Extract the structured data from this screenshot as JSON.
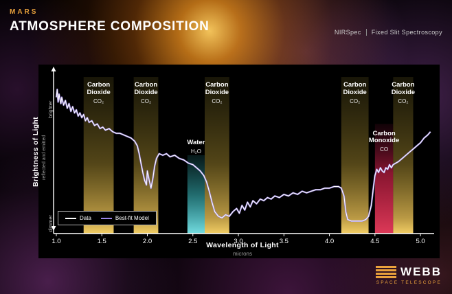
{
  "header": {
    "kicker": "MARS",
    "title": "ATMOSPHERE COMPOSITION",
    "instrument": "NIRSpec",
    "mode": "Fixed Slit Spectroscopy"
  },
  "footer": {
    "logo_name": "WEBB",
    "logo_sub": "SPACE TELESCOPE"
  },
  "colors": {
    "accent_orange": "#e9a13c",
    "model_purple": "#9b85e8",
    "data_white": "#ffffff",
    "band_yellow": "#e8c150",
    "band_teal": "#4fd8dc",
    "band_red": "#d62246"
  },
  "chart_data": {
    "type": "line",
    "title": "Mars Atmosphere Composition",
    "xlabel": "Wavelength of Light",
    "xlabel_sub": "microns",
    "ylabel": "Brightness of Light",
    "ylabel_sub": "reflected and emitted",
    "y_axis_top": "brighter",
    "y_axis_bottom": "dimmer",
    "xlim": [
      0.97,
      5.12
    ],
    "ylim": [
      0,
      100
    ],
    "x_ticks": [
      "1.0",
      "1.5",
      "2.0",
      "2.5",
      "3.0",
      "3.5",
      "4.0",
      "4.5",
      "5.0"
    ],
    "grid": false,
    "legend_position": "bottom-left",
    "legend": [
      {
        "label": "Data",
        "color": "#ffffff"
      },
      {
        "label": "Best-fit Model",
        "color": "#9b85e8"
      }
    ],
    "bands": [
      {
        "name": "Carbon Dioxide",
        "formula": "CO₂",
        "x0": 1.3,
        "x1": 1.63,
        "color": "yellow",
        "band_top": 0.0,
        "label_top": 0.03
      },
      {
        "name": "Carbon Dioxide",
        "formula": "CO₂",
        "x0": 1.85,
        "x1": 2.12,
        "color": "yellow",
        "band_top": 0.0,
        "label_top": 0.03
      },
      {
        "name": "Water",
        "formula": "H₂O",
        "x0": 2.44,
        "x1": 2.63,
        "color": "teal",
        "band_top": 0.5,
        "label_top": 0.4
      },
      {
        "name": "Carbon Dioxide",
        "formula": "CO₂",
        "x0": 2.63,
        "x1": 2.9,
        "color": "yellow",
        "band_top": 0.0,
        "label_top": 0.03
      },
      {
        "name": "Carbon Dioxide",
        "formula": "CO₂",
        "x0": 4.13,
        "x1": 4.43,
        "color": "yellow",
        "band_top": 0.0,
        "label_top": 0.03
      },
      {
        "name": "Carbon Monoxide",
        "formula": "CO",
        "x0": 4.5,
        "x1": 4.7,
        "color": "red",
        "band_top": 0.3,
        "label_top": 0.34
      },
      {
        "name": "Carbon Dioxide",
        "formula": "CO₂",
        "x0": 4.7,
        "x1": 4.92,
        "color": "yellow",
        "band_top": 0.0,
        "label_top": 0.03
      }
    ],
    "series": [
      {
        "name": "spectrum",
        "points": [
          [
            1.0,
            87
          ],
          [
            1.01,
            92
          ],
          [
            1.02,
            84
          ],
          [
            1.03,
            89
          ],
          [
            1.05,
            83
          ],
          [
            1.06,
            87
          ],
          [
            1.08,
            82
          ],
          [
            1.1,
            85
          ],
          [
            1.12,
            80
          ],
          [
            1.14,
            83
          ],
          [
            1.16,
            78
          ],
          [
            1.18,
            81
          ],
          [
            1.2,
            77
          ],
          [
            1.22,
            79
          ],
          [
            1.24,
            75
          ],
          [
            1.26,
            77
          ],
          [
            1.28,
            74
          ],
          [
            1.3,
            76
          ],
          [
            1.32,
            72
          ],
          [
            1.34,
            74
          ],
          [
            1.36,
            71
          ],
          [
            1.39,
            72
          ],
          [
            1.42,
            69
          ],
          [
            1.45,
            70
          ],
          [
            1.48,
            67
          ],
          [
            1.51,
            68
          ],
          [
            1.54,
            66
          ],
          [
            1.58,
            67
          ],
          [
            1.62,
            65
          ],
          [
            1.66,
            64
          ],
          [
            1.7,
            64
          ],
          [
            1.74,
            63
          ],
          [
            1.78,
            62
          ],
          [
            1.82,
            61
          ],
          [
            1.86,
            59
          ],
          [
            1.89,
            56
          ],
          [
            1.91,
            51
          ],
          [
            1.93,
            45
          ],
          [
            1.95,
            39
          ],
          [
            1.97,
            34
          ],
          [
            1.99,
            31
          ],
          [
            2.0,
            40
          ],
          [
            2.02,
            34
          ],
          [
            2.04,
            29
          ],
          [
            2.06,
            35
          ],
          [
            2.08,
            43
          ],
          [
            2.1,
            48
          ],
          [
            2.13,
            51
          ],
          [
            2.17,
            50
          ],
          [
            2.21,
            51
          ],
          [
            2.25,
            49
          ],
          [
            2.3,
            50
          ],
          [
            2.35,
            48
          ],
          [
            2.4,
            47
          ],
          [
            2.45,
            45
          ],
          [
            2.5,
            44
          ],
          [
            2.54,
            42
          ],
          [
            2.58,
            40
          ],
          [
            2.62,
            37
          ],
          [
            2.65,
            33
          ],
          [
            2.68,
            27
          ],
          [
            2.71,
            20
          ],
          [
            2.74,
            14
          ],
          [
            2.78,
            11
          ],
          [
            2.82,
            10
          ],
          [
            2.86,
            12
          ],
          [
            2.9,
            11
          ],
          [
            2.94,
            14
          ],
          [
            2.98,
            16
          ],
          [
            3.01,
            13
          ],
          [
            3.04,
            18
          ],
          [
            3.07,
            15
          ],
          [
            3.1,
            20
          ],
          [
            3.13,
            17
          ],
          [
            3.16,
            21
          ],
          [
            3.2,
            19
          ],
          [
            3.24,
            22
          ],
          [
            3.28,
            21
          ],
          [
            3.32,
            23
          ],
          [
            3.36,
            22
          ],
          [
            3.4,
            24
          ],
          [
            3.45,
            23
          ],
          [
            3.5,
            25
          ],
          [
            3.55,
            24
          ],
          [
            3.6,
            26
          ],
          [
            3.65,
            25
          ],
          [
            3.7,
            27
          ],
          [
            3.75,
            26
          ],
          [
            3.8,
            27
          ],
          [
            3.85,
            28
          ],
          [
            3.9,
            28
          ],
          [
            3.95,
            29
          ],
          [
            4.0,
            29
          ],
          [
            4.05,
            30
          ],
          [
            4.1,
            30
          ],
          [
            4.13,
            29
          ],
          [
            4.16,
            24
          ],
          [
            4.18,
            14
          ],
          [
            4.2,
            9
          ],
          [
            4.24,
            8
          ],
          [
            4.28,
            8
          ],
          [
            4.32,
            8
          ],
          [
            4.36,
            8
          ],
          [
            4.4,
            9
          ],
          [
            4.43,
            11
          ],
          [
            4.46,
            18
          ],
          [
            4.48,
            28
          ],
          [
            4.5,
            37
          ],
          [
            4.52,
            41
          ],
          [
            4.54,
            39
          ],
          [
            4.56,
            42
          ],
          [
            4.58,
            40
          ],
          [
            4.6,
            39
          ],
          [
            4.62,
            42
          ],
          [
            4.64,
            41
          ],
          [
            4.66,
            44
          ],
          [
            4.68,
            42
          ],
          [
            4.7,
            44
          ],
          [
            4.73,
            45
          ],
          [
            4.76,
            46
          ],
          [
            4.8,
            48
          ],
          [
            4.84,
            50
          ],
          [
            4.88,
            52
          ],
          [
            4.92,
            54
          ],
          [
            4.96,
            56
          ],
          [
            5.0,
            58
          ],
          [
            5.04,
            61
          ],
          [
            5.08,
            63
          ],
          [
            5.11,
            65
          ]
        ]
      }
    ]
  }
}
